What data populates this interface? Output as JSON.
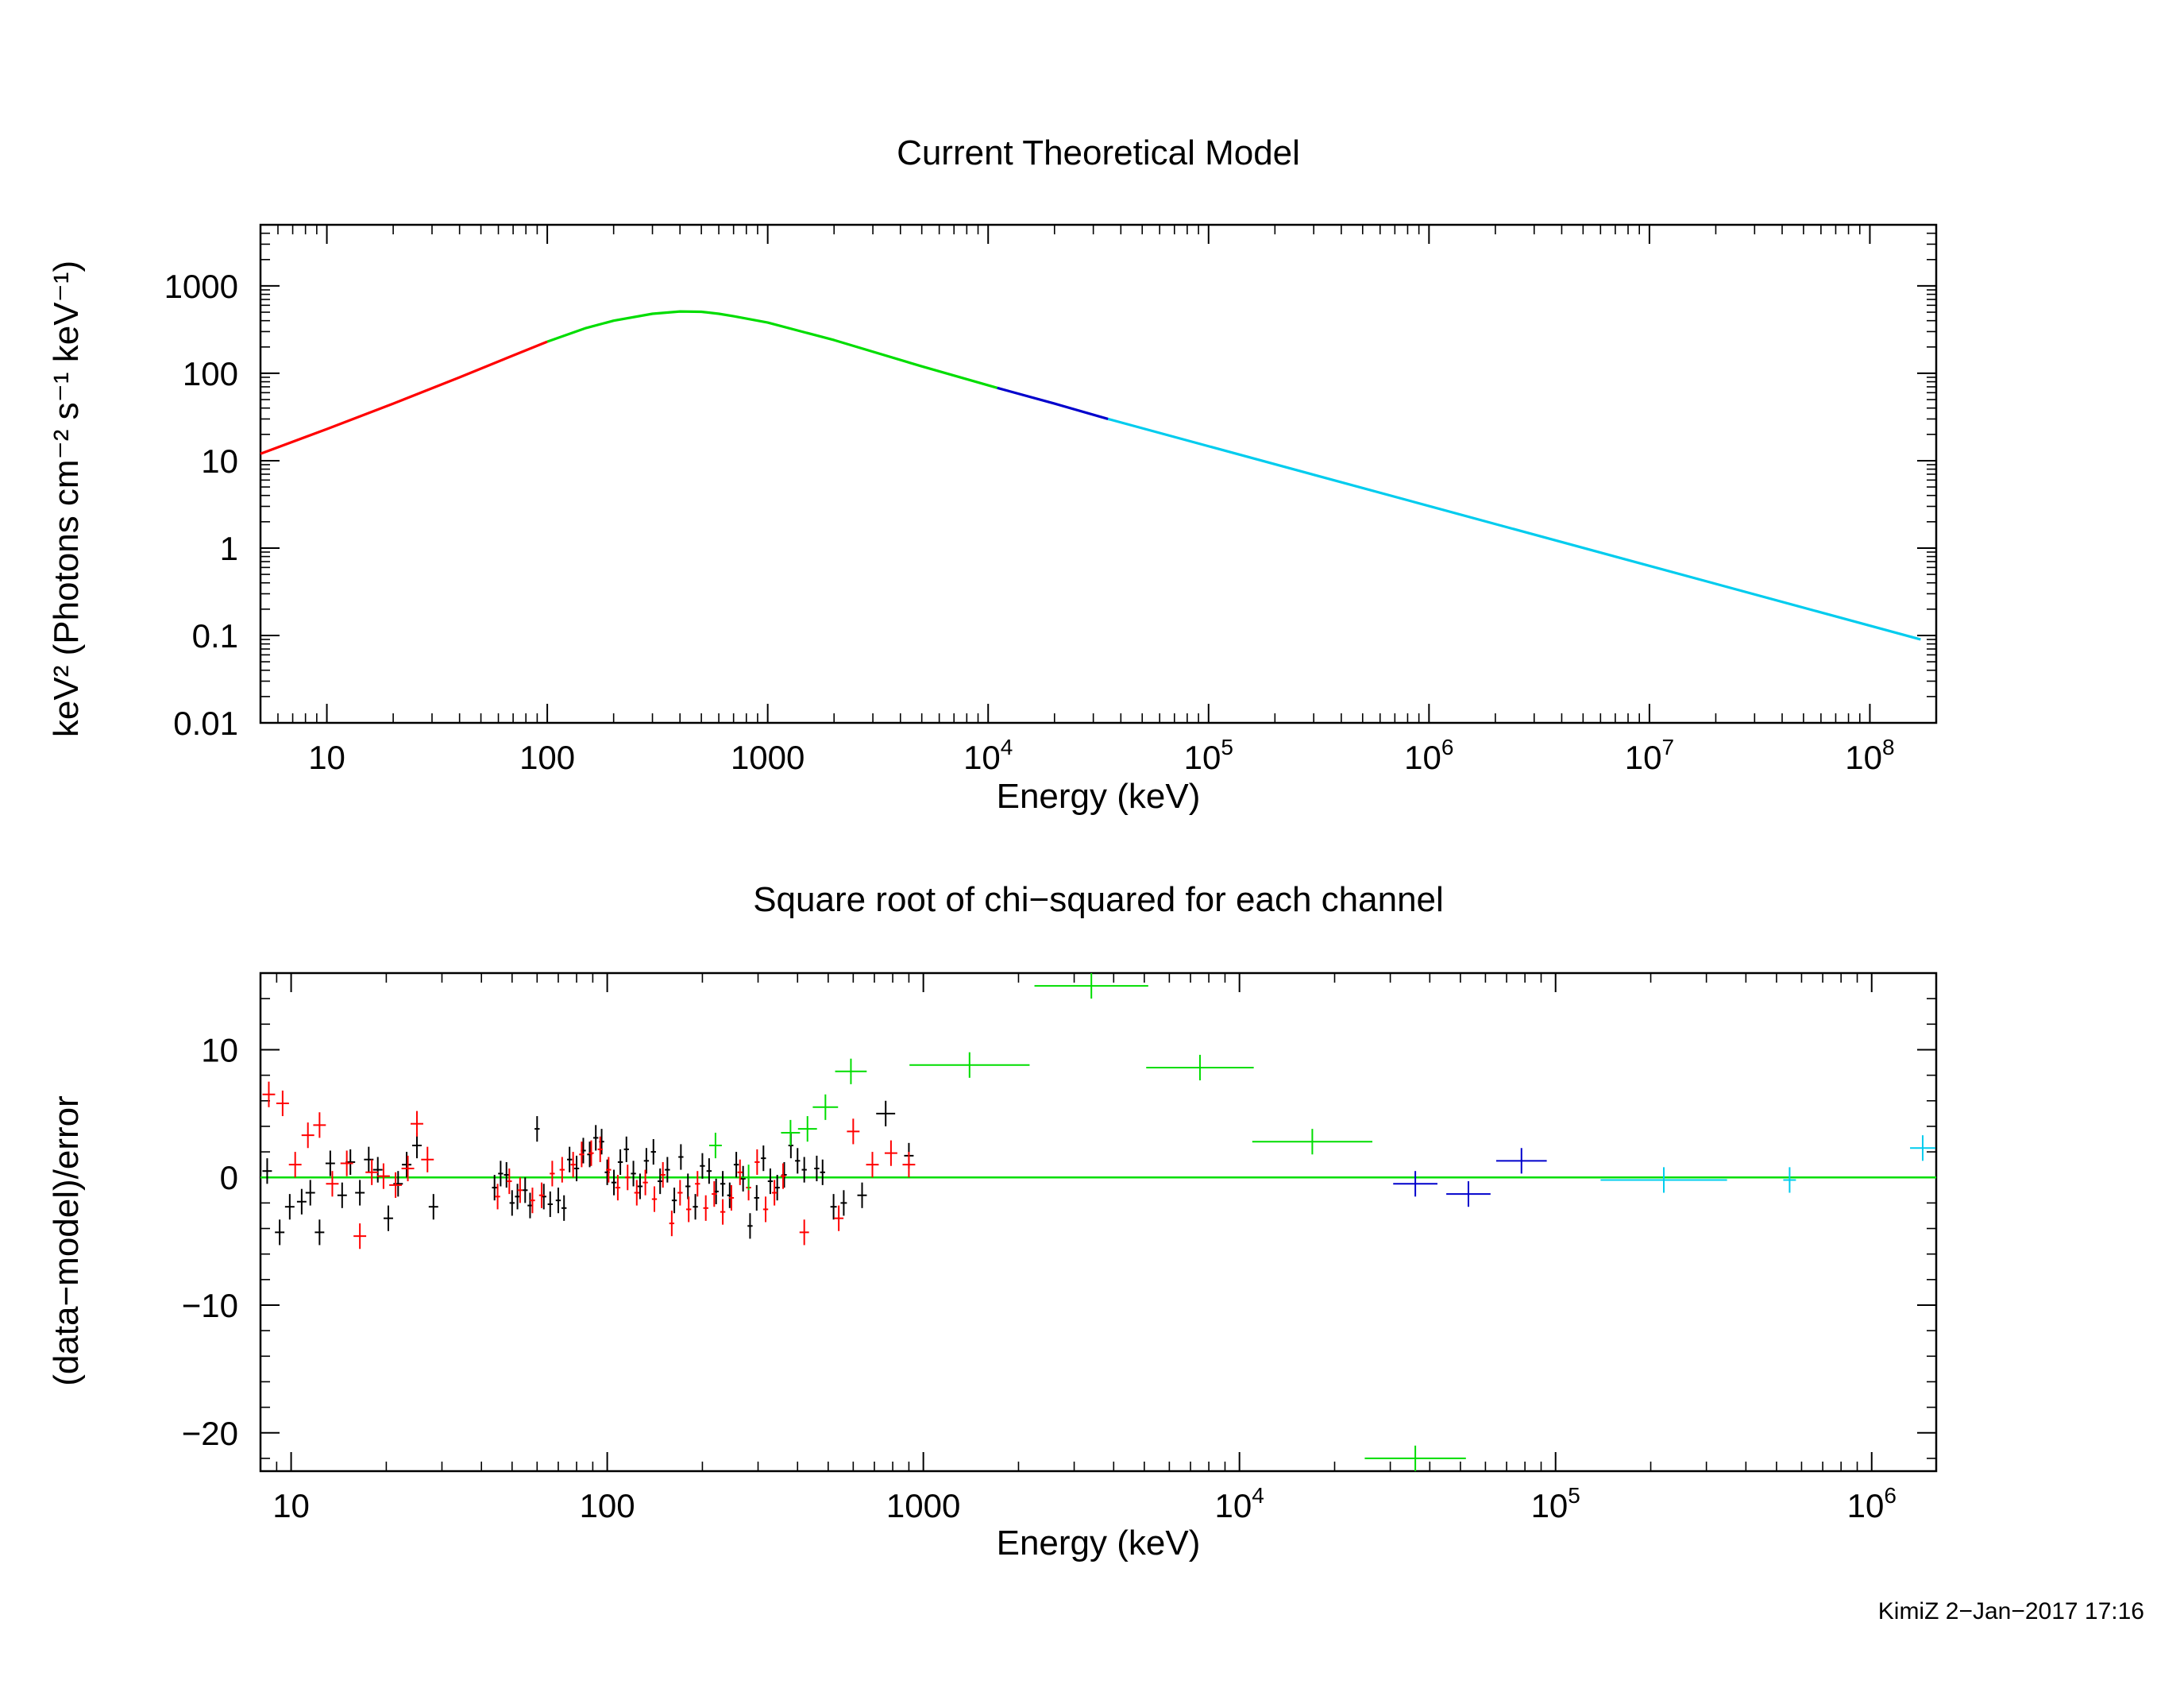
{
  "stamp": "KimiZ  2−Jan−2017 17:16",
  "chart_data": [
    {
      "type": "line",
      "title": "Current Theoretical Model",
      "xlabel": "Energy (keV)",
      "ylabel": "keV² (Photons cm⁻² s⁻¹ keV⁻¹)",
      "xscale": "log",
      "yscale": "log",
      "xlim": [
        5,
        200000000
      ],
      "ylim": [
        0.01,
        5000
      ],
      "grid": false,
      "xticks": [
        {
          "v": 10,
          "base": "10",
          "exp": ""
        },
        {
          "v": 100,
          "base": "100",
          "exp": ""
        },
        {
          "v": 1000,
          "base": "1000",
          "exp": ""
        },
        {
          "v": 10000,
          "base": "10",
          "exp": "4"
        },
        {
          "v": 100000,
          "base": "10",
          "exp": "5"
        },
        {
          "v": 1000000,
          "base": "10",
          "exp": "6"
        },
        {
          "v": 10000000,
          "base": "10",
          "exp": "7"
        },
        {
          "v": 100000000,
          "base": "10",
          "exp": "8"
        }
      ],
      "yticks": [
        {
          "v": 0.01,
          "label": "0.01"
        },
        {
          "v": 0.1,
          "label": "0.1"
        },
        {
          "v": 1,
          "label": "1"
        },
        {
          "v": 10,
          "label": "10"
        },
        {
          "v": 100,
          "label": "100"
        },
        {
          "v": 1000,
          "label": "1000"
        }
      ],
      "series": [
        {
          "color": "#ff0000",
          "x": [
            5,
            10,
            20,
            40,
            70,
            100
          ],
          "y": [
            12,
            23,
            45,
            90,
            160,
            230
          ]
        },
        {
          "color": "#00dd00",
          "x": [
            100,
            150,
            200,
            300,
            400,
            500,
            600,
            700,
            1000,
            2000,
            5000,
            11000
          ],
          "y": [
            230,
            330,
            400,
            480,
            510,
            505,
            480,
            450,
            380,
            240,
            120,
            68
          ]
        },
        {
          "color": "#0000cc",
          "x": [
            11000,
            20000,
            35000
          ],
          "y": [
            68,
            45,
            30
          ]
        },
        {
          "color": "#00ccee",
          "x": [
            35000,
            170000000
          ],
          "y": [
            30,
            0.09
          ]
        }
      ]
    },
    {
      "type": "scatter",
      "title": "Square root of chi−squared for each channel",
      "xlabel": "Energy (keV)",
      "ylabel": "(data−model)/error",
      "xscale": "log",
      "xlim": [
        8,
        1600000
      ],
      "ylim": [
        -23,
        16
      ],
      "grid": false,
      "baseline": 0,
      "baseline_color": "#00dd00",
      "xticks": [
        {
          "v": 10,
          "base": "10",
          "exp": ""
        },
        {
          "v": 100,
          "base": "100",
          "exp": ""
        },
        {
          "v": 1000,
          "base": "1000",
          "exp": ""
        },
        {
          "v": 10000,
          "base": "10",
          "exp": "4"
        },
        {
          "v": 100000,
          "base": "10",
          "exp": "5"
        },
        {
          "v": 1000000,
          "base": "10",
          "exp": "6"
        }
      ],
      "yticks": [
        {
          "v": 10,
          "label": "10"
        },
        {
          "v": 0,
          "label": "0"
        },
        {
          "v": -10,
          "label": "−10"
        },
        {
          "v": -20,
          "label": "−20"
        }
      ],
      "series": [
        {
          "color": "#000000",
          "points": [
            [
              8.4,
              0.5,
              0.015,
              1
            ],
            [
              9.2,
              -4.3,
              0.015,
              1
            ],
            [
              9.9,
              -2.3,
              0.015,
              1
            ],
            [
              10.8,
              -1.9,
              0.015,
              1
            ],
            [
              11.5,
              -1.2,
              0.015,
              1
            ],
            [
              12.3,
              -4.3,
              0.015,
              1
            ],
            [
              13.3,
              1.1,
              0.015,
              1
            ],
            [
              14.5,
              -1.4,
              0.015,
              1
            ],
            [
              15.4,
              1.2,
              0.015,
              1
            ],
            [
              16.5,
              -1.2,
              0.015,
              1
            ],
            [
              17.6,
              1.4,
              0.015,
              1
            ],
            [
              18.8,
              0.6,
              0.015,
              1
            ],
            [
              20.3,
              -3.2,
              0.015,
              1
            ],
            [
              21.8,
              -0.5,
              0.015,
              1
            ],
            [
              23.2,
              1.0,
              0.015,
              1
            ],
            [
              25.0,
              2.5,
              0.015,
              1
            ],
            [
              28.2,
              -2.3,
              0.015,
              1
            ],
            [
              44,
              -0.8,
              0.008,
              1
            ],
            [
              46,
              0.3,
              0.008,
              1
            ],
            [
              48,
              0.2,
              0.008,
              1
            ],
            [
              50,
              -2.0,
              0.008,
              1
            ],
            [
              52,
              -1.5,
              0.008,
              1
            ],
            [
              55,
              -1.0,
              0.008,
              1
            ],
            [
              57,
              -2.2,
              0.008,
              1
            ],
            [
              60,
              3.8,
              0.008,
              1
            ],
            [
              63,
              -1.5,
              0.008,
              1
            ],
            [
              66,
              -2.1,
              0.008,
              1
            ],
            [
              70,
              -1.8,
              0.008,
              1
            ],
            [
              73,
              -2.4,
              0.008,
              1
            ],
            [
              76,
              1.4,
              0.008,
              1
            ],
            [
              80,
              0.7,
              0.008,
              1
            ],
            [
              84,
              2.1,
              0.008,
              1
            ],
            [
              88,
              1.8,
              0.008,
              1
            ],
            [
              92,
              3.1,
              0.008,
              1
            ],
            [
              96,
              2.8,
              0.008,
              1
            ],
            [
              100,
              0.4,
              0.008,
              1
            ],
            [
              105,
              -0.4,
              0.008,
              1
            ],
            [
              110,
              1.2,
              0.008,
              1
            ],
            [
              115,
              2.2,
              0.008,
              1
            ],
            [
              121,
              0.3,
              0.008,
              1
            ],
            [
              127,
              -0.7,
              0.008,
              1
            ],
            [
              133,
              1.3,
              0.008,
              1
            ],
            [
              140,
              2.0,
              0.008,
              1
            ],
            [
              147,
              -0.3,
              0.008,
              1
            ],
            [
              155,
              0.6,
              0.008,
              1
            ],
            [
              163,
              -1.8,
              0.008,
              1
            ],
            [
              171,
              1.6,
              0.008,
              1
            ],
            [
              180,
              -0.7,
              0.008,
              1
            ],
            [
              190,
              -2.3,
              0.008,
              1
            ],
            [
              200,
              0.9,
              0.008,
              1
            ],
            [
              210,
              0.5,
              0.008,
              1
            ],
            [
              221,
              -1.1,
              0.008,
              1
            ],
            [
              232,
              -0.5,
              0.008,
              1
            ],
            [
              244,
              -1.4,
              0.008,
              1
            ],
            [
              256,
              1.0,
              0.008,
              1
            ],
            [
              269,
              -0.1,
              0.008,
              1
            ],
            [
              283,
              -3.8,
              0.008,
              1
            ],
            [
              297,
              -1.6,
              0.008,
              1
            ],
            [
              312,
              1.5,
              0.008,
              1
            ],
            [
              328,
              -0.3,
              0.008,
              1
            ],
            [
              345,
              -0.8,
              0.008,
              1
            ],
            [
              363,
              0.2,
              0.008,
              1
            ],
            [
              381,
              2.5,
              0.008,
              1
            ],
            [
              400,
              1.3,
              0.008,
              1
            ],
            [
              420,
              0.6,
              0.008,
              1
            ],
            [
              460,
              0.7,
              0.008,
              1
            ],
            [
              480,
              0.4,
              0.008,
              1
            ],
            [
              520,
              -2.3,
              0.01,
              1
            ],
            [
              560,
              -2.0,
              0.01,
              1
            ],
            [
              640,
              -1.4,
              0.015,
              1
            ],
            [
              760,
              5.0,
              0.03,
              1
            ],
            [
              900,
              1.7,
              0.015,
              1
            ]
          ]
        },
        {
          "color": "#ff0000",
          "points": [
            [
              8.5,
              6.5,
              0.02,
              1
            ],
            [
              9.4,
              5.8,
              0.02,
              1
            ],
            [
              10.3,
              1.0,
              0.02,
              1
            ],
            [
              11.3,
              3.3,
              0.02,
              1
            ],
            [
              12.3,
              4.1,
              0.02,
              1
            ],
            [
              13.5,
              -0.5,
              0.02,
              1
            ],
            [
              15.0,
              1.1,
              0.02,
              1
            ],
            [
              16.5,
              -4.6,
              0.02,
              1
            ],
            [
              18.0,
              0.4,
              0.02,
              1
            ],
            [
              19.6,
              0.1,
              0.02,
              1
            ],
            [
              21.4,
              -0.6,
              0.02,
              1
            ],
            [
              23.4,
              0.7,
              0.02,
              1
            ],
            [
              25.0,
              4.2,
              0.02,
              1
            ],
            [
              27.0,
              1.4,
              0.02,
              1
            ],
            [
              45,
              -1.5,
              0.008,
              1
            ],
            [
              49,
              -0.3,
              0.008,
              1
            ],
            [
              53,
              -1.0,
              0.008,
              1
            ],
            [
              58,
              -1.8,
              0.008,
              1
            ],
            [
              62,
              -1.4,
              0.008,
              1
            ],
            [
              67,
              0.3,
              0.008,
              1
            ],
            [
              72,
              0.6,
              0.008,
              1
            ],
            [
              78,
              1.0,
              0.008,
              1
            ],
            [
              83,
              1.8,
              0.008,
              1
            ],
            [
              89,
              1.9,
              0.008,
              1
            ],
            [
              95,
              2.2,
              0.008,
              1
            ],
            [
              101,
              0.6,
              0.008,
              1
            ],
            [
              108,
              -0.8,
              0.008,
              1
            ],
            [
              116,
              0.0,
              0.008,
              1
            ],
            [
              124,
              -1.2,
              0.008,
              1
            ],
            [
              132,
              -0.4,
              0.008,
              1
            ],
            [
              141,
              -1.7,
              0.008,
              1
            ],
            [
              150,
              0.2,
              0.008,
              1
            ],
            [
              160,
              -3.6,
              0.008,
              1
            ],
            [
              170,
              -1.2,
              0.008,
              1
            ],
            [
              181,
              -2.5,
              0.008,
              1
            ],
            [
              193,
              -0.5,
              0.008,
              1
            ],
            [
              205,
              -2.4,
              0.008,
              1
            ],
            [
              218,
              -1.3,
              0.008,
              1
            ],
            [
              232,
              -2.7,
              0.008,
              1
            ],
            [
              247,
              -1.6,
              0.008,
              1
            ],
            [
              263,
              0.4,
              0.008,
              1
            ],
            [
              280,
              -0.8,
              0.008,
              1
            ],
            [
              298,
              1.2,
              0.008,
              1
            ],
            [
              317,
              -2.5,
              0.008,
              1
            ],
            [
              338,
              -1.2,
              0.008,
              1
            ],
            [
              360,
              0.1,
              0.008,
              1
            ],
            [
              420,
              -4.3,
              0.015,
              1
            ],
            [
              540,
              -3.2,
              0.015,
              1
            ],
            [
              600,
              3.6,
              0.02,
              1
            ],
            [
              690,
              1.0,
              0.02,
              1
            ],
            [
              790,
              1.9,
              0.02,
              1
            ],
            [
              900,
              1.0,
              0.02,
              1
            ]
          ]
        },
        {
          "color": "#00dd00",
          "points": [
            [
              220,
              2.5,
              0.02,
              1
            ],
            [
              280,
              0.0,
              0.02,
              1
            ],
            [
              380,
              3.5,
              0.03,
              1
            ],
            [
              430,
              3.8,
              0.03,
              1
            ],
            [
              490,
              5.5,
              0.04,
              1
            ],
            [
              590,
              8.3,
              0.05,
              1
            ],
            [
              1400,
              8.8,
              0.19,
              1
            ],
            [
              3400,
              15.0,
              0.18,
              1
            ],
            [
              7500,
              8.6,
              0.17,
              1
            ],
            [
              17000,
              2.8,
              0.19,
              1
            ],
            [
              36000,
              -22.0,
              0.16,
              1
            ]
          ]
        },
        {
          "color": "#0000cc",
          "points": [
            [
              36000,
              -0.5,
              0.07,
              1
            ],
            [
              53000,
              -1.3,
              0.07,
              1
            ],
            [
              78000,
              1.3,
              0.08,
              1
            ]
          ]
        },
        {
          "color": "#00ccee",
          "points": [
            [
              220000,
              -0.2,
              0.2,
              1
            ],
            [
              550000,
              -0.2,
              0.02,
              1
            ],
            [
              1450000,
              2.3,
              0.04,
              1
            ]
          ]
        }
      ]
    }
  ]
}
